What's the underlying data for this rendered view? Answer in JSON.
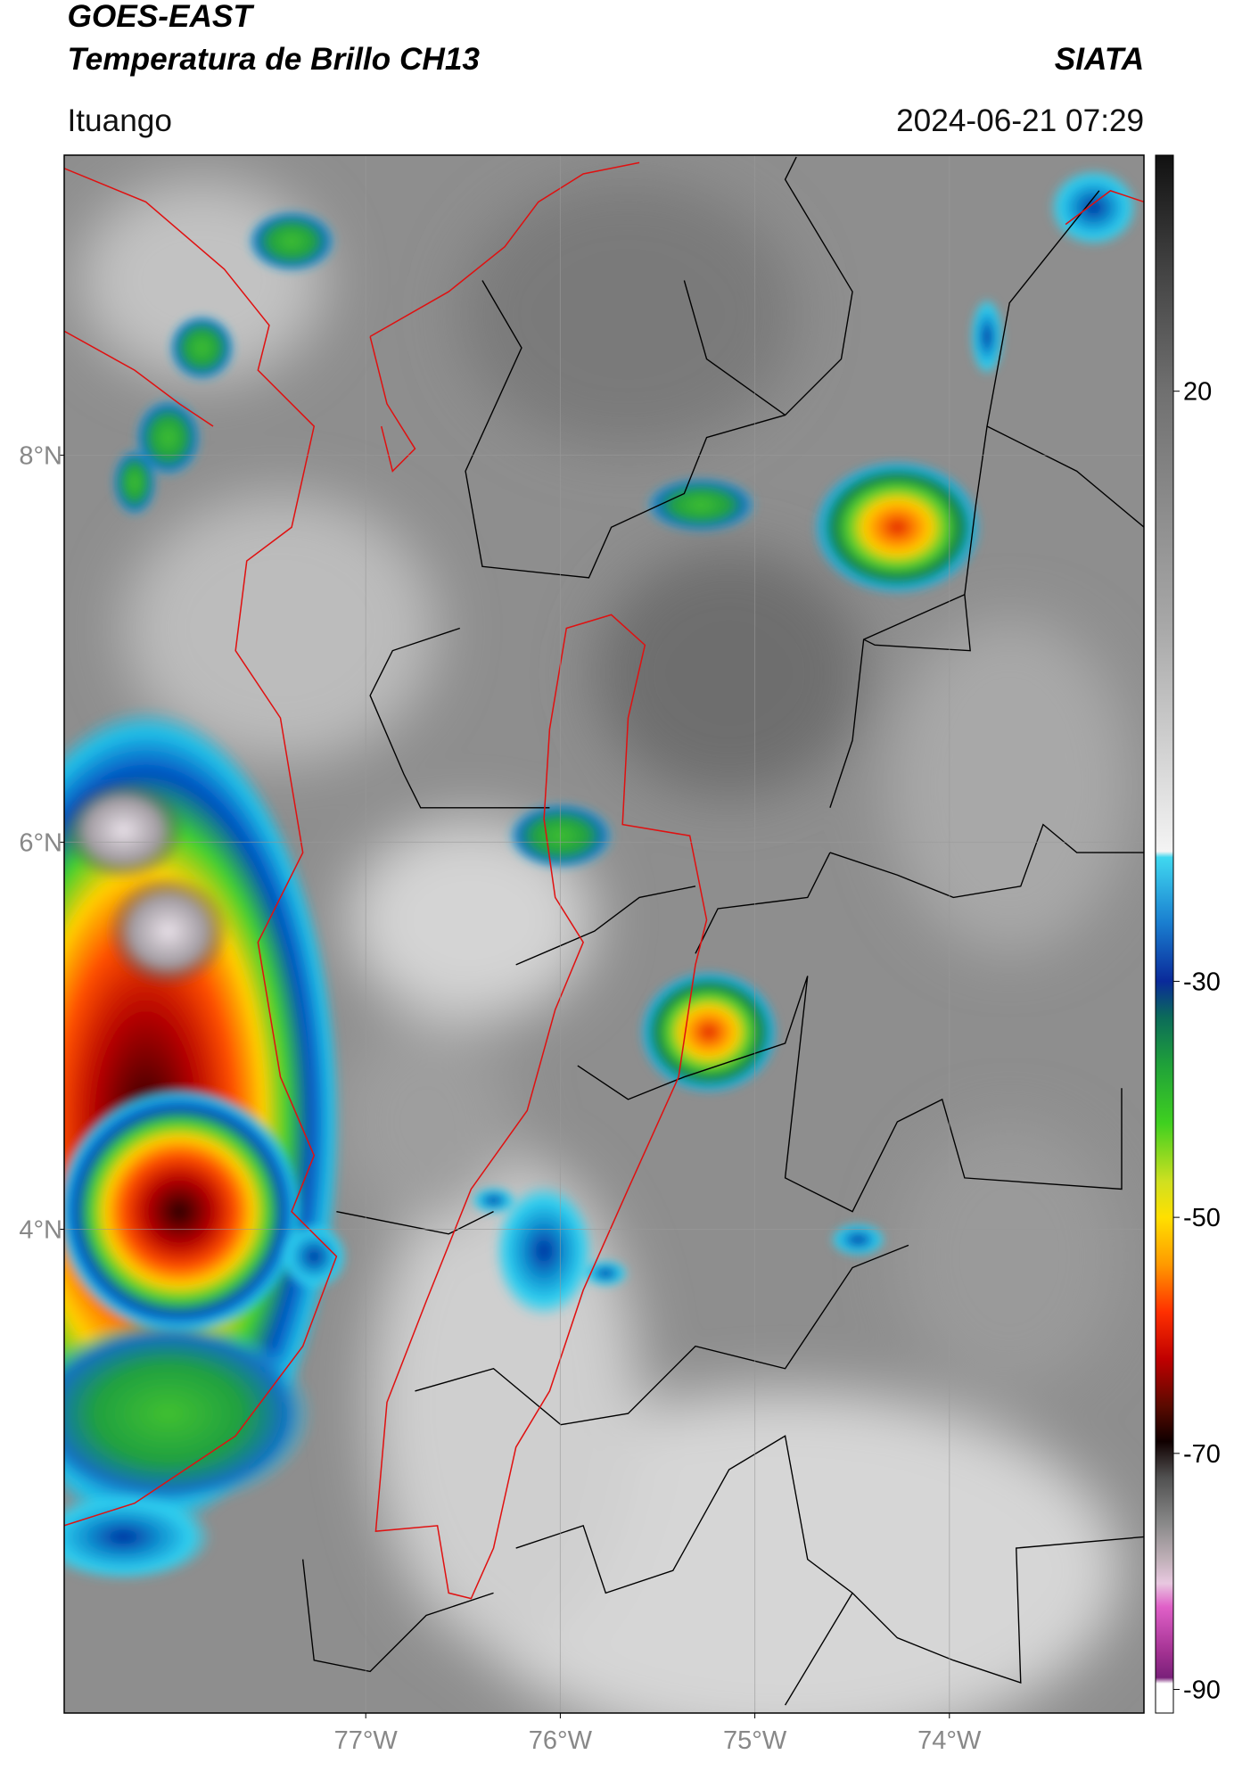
{
  "header": {
    "satellite": "GOES-EAST",
    "product": "Temperatura de Brillo CH13",
    "agency": "SIATA",
    "region": "Ituango",
    "datetime": "2024-06-21 07:29"
  },
  "map": {
    "xlim": [
      -78.55,
      -73.0
    ],
    "ylim": [
      1.5,
      9.55
    ],
    "xticks": [
      {
        "value": -77,
        "label": "77°W"
      },
      {
        "value": -76,
        "label": "76°W"
      },
      {
        "value": -75,
        "label": "75°W"
      },
      {
        "value": -74,
        "label": "74°W"
      }
    ],
    "yticks": [
      {
        "value": 4,
        "label": "4°N"
      },
      {
        "value": 6,
        "label": "6°N"
      },
      {
        "value": 8,
        "label": "8°N"
      }
    ],
    "grid": true
  },
  "colorbar": {
    "lim": [
      -92,
      40
    ],
    "ticks": [
      -90,
      -70,
      -50,
      -30,
      20
    ],
    "colormap": [
      {
        "value": 40,
        "color": "#111111"
      },
      {
        "value": 30,
        "color": "#444444"
      },
      {
        "value": 20,
        "color": "#707070"
      },
      {
        "value": 0,
        "color": "#a8a8a8"
      },
      {
        "value": -19,
        "color": "#f4f4f4"
      },
      {
        "value": -19.5,
        "color": "#40d8f0"
      },
      {
        "value": -25,
        "color": "#1a7fd0"
      },
      {
        "value": -30,
        "color": "#0a2a9a"
      },
      {
        "value": -33,
        "color": "#0b6a5a"
      },
      {
        "value": -37,
        "color": "#1fa03a"
      },
      {
        "value": -42,
        "color": "#3fd020"
      },
      {
        "value": -47,
        "color": "#d0e020"
      },
      {
        "value": -50,
        "color": "#ffe000"
      },
      {
        "value": -54,
        "color": "#ff9a00"
      },
      {
        "value": -58,
        "color": "#ff3000"
      },
      {
        "value": -62,
        "color": "#c00000"
      },
      {
        "value": -66,
        "color": "#5a0a00"
      },
      {
        "value": -69,
        "color": "#100000"
      },
      {
        "value": -72,
        "color": "#505050"
      },
      {
        "value": -76,
        "color": "#8a8a8a"
      },
      {
        "value": -79,
        "color": "#c0b0b8"
      },
      {
        "value": -81,
        "color": "#e8c8e0"
      },
      {
        "value": -83,
        "color": "#e060c8"
      },
      {
        "value": -87,
        "color": "#a03090"
      },
      {
        "value": -89,
        "color": "#7a207a"
      },
      {
        "value": -89.5,
        "color": "#ffffff"
      },
      {
        "value": -92,
        "color": "#ffffff"
      }
    ]
  }
}
